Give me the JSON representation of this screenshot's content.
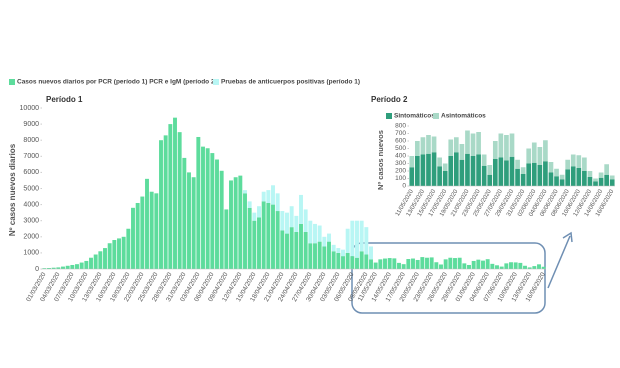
{
  "chart_data": [
    {
      "type": "stacked_bar",
      "title": "Período 1",
      "y_label": "Nº casos nuevos diarios",
      "categories": [
        "01/03/2020",
        null,
        null,
        "04/03/2020",
        null,
        null,
        "07/03/2020",
        null,
        null,
        "10/03/2020",
        null,
        null,
        "13/03/2020",
        null,
        null,
        "16/03/2020",
        null,
        null,
        "19/03/2020",
        null,
        null,
        "22/03/2020",
        null,
        null,
        "25/03/2020",
        null,
        null,
        "28/03/2020",
        null,
        null,
        "31/03/2020",
        null,
        null,
        "03/04/2020",
        null,
        null,
        "06/04/2020",
        null,
        null,
        "09/04/2020",
        null,
        null,
        "12/04/2020",
        null,
        null,
        "15/04/2020",
        null,
        null,
        "18/04/2020",
        null,
        null,
        "21/04/2020",
        null,
        null,
        "24/04/2020",
        null,
        null,
        "27/04/2020",
        null,
        null,
        "30/04/2020",
        null,
        null,
        "03/05/2020",
        null,
        null,
        "06/05/2020",
        null,
        null,
        "09/05/2020",
        null,
        "11/05/2020",
        null,
        null,
        "14/05/2020",
        null,
        null,
        "17/05/2020",
        null,
        null,
        "20/05/2020",
        null,
        null,
        "23/05/2020",
        null,
        null,
        "26/05/2020",
        null,
        null,
        "29/05/2020",
        null,
        null,
        "01/06/2020",
        null,
        null,
        "04/06/2020",
        null,
        null,
        "07/06/2020",
        null,
        null,
        "10/06/2020",
        null,
        null,
        "13/06/2020",
        null,
        null,
        "16/06/2020"
      ],
      "series": [
        {
          "name": "Casos nuevos diarios por PCR (período 1) PCR e IgM (período 2)",
          "color": "#5ddc9c",
          "values": [
            50,
            60,
            80,
            100,
            150,
            200,
            250,
            300,
            400,
            500,
            700,
            900,
            1100,
            1300,
            1600,
            1800,
            1900,
            2000,
            2500,
            3800,
            4100,
            4500,
            5600,
            4800,
            4700,
            8000,
            8300,
            9000,
            9400,
            8500,
            6900,
            6000,
            5700,
            8200,
            7600,
            7500,
            7200,
            6800,
            6100,
            3700,
            5500,
            5700,
            5800,
            4700,
            3800,
            3000,
            3200,
            4200,
            4100,
            4000,
            3600,
            2400,
            2200,
            2600,
            2300,
            2800,
            2300,
            1600,
            1600,
            1700,
            1400,
            1700,
            1100,
            1000,
            800,
            1000,
            800,
            700,
            1100,
            900,
            600,
            400,
            600,
            650,
            680,
            660,
            380,
            300,
            620,
            650,
            560,
            740,
            700,
            720,
            420,
            280,
            600,
            700,
            680,
            700,
            350,
            250,
            500,
            580,
            520,
            610,
            320,
            230,
            150,
            350,
            420,
            410,
            380,
            200,
            100,
            180,
            290,
            140
          ]
        },
        {
          "name": "Pruebas de anticuerpos positivas (período 1)",
          "color": "#b8f6f4",
          "values": [
            null,
            null,
            null,
            null,
            null,
            null,
            null,
            null,
            null,
            null,
            null,
            null,
            null,
            null,
            null,
            null,
            null,
            null,
            null,
            null,
            null,
            null,
            null,
            null,
            null,
            null,
            null,
            null,
            null,
            null,
            null,
            null,
            null,
            null,
            null,
            null,
            null,
            null,
            null,
            null,
            null,
            null,
            null,
            200,
            400,
            500,
            700,
            600,
            800,
            1200,
            1100,
            1200,
            1300,
            1300,
            1000,
            1800,
            1400,
            1400,
            1200,
            1000,
            600,
            500,
            400,
            300,
            400,
            1500,
            2200,
            2300,
            1900,
            1700,
            800,
            null,
            null,
            null,
            null,
            null,
            null,
            null,
            null,
            null,
            null,
            null,
            null,
            null,
            null,
            null,
            null,
            null,
            null,
            null,
            null,
            null,
            null,
            null,
            null,
            null,
            null,
            null,
            null,
            null,
            null,
            null,
            null,
            null,
            null,
            null,
            null,
            null
          ]
        }
      ],
      "ylim": [
        0,
        10000
      ],
      "yticks": [
        0,
        1000,
        2000,
        3000,
        4000,
        5000,
        6000,
        7000,
        8000,
        9000,
        10000
      ]
    },
    {
      "type": "stacked_bar",
      "title": "Período 2",
      "y_label": "Nº casos nuevos",
      "categories": [
        "11/05/2020",
        null,
        "13/05/2020",
        null,
        "15/05/2020",
        null,
        "17/05/2020",
        null,
        "19/05/2020",
        null,
        "21/05/2020",
        null,
        "23/05/2020",
        null,
        "25/05/2020",
        null,
        "27/05/2020",
        null,
        "29/05/2020",
        null,
        "31/05/2020",
        null,
        "02/06/2020",
        null,
        "04/06/2020",
        null,
        "06/06/2020",
        null,
        "08/06/2020",
        null,
        "10/06/2020",
        null,
        "12/06/2020",
        null,
        "14/06/2020",
        null,
        "16/06/2020"
      ],
      "series": [
        {
          "name": "Sintomáticos",
          "color": "#2f9e7c",
          "values": [
            250,
            400,
            420,
            430,
            450,
            260,
            200,
            400,
            450,
            350,
            430,
            400,
            420,
            270,
            150,
            360,
            380,
            340,
            390,
            230,
            160,
            300,
            310,
            280,
            330,
            180,
            130,
            90,
            220,
            260,
            240,
            200,
            120,
            60,
            110,
            150,
            90
          ]
        },
        {
          "name": "Asintomáticos",
          "color": "#a9d9c7",
          "values": [
            150,
            200,
            230,
            250,
            210,
            120,
            100,
            220,
            200,
            210,
            310,
            300,
            300,
            150,
            130,
            240,
            320,
            340,
            310,
            120,
            90,
            200,
            270,
            240,
            280,
            140,
            100,
            60,
            130,
            160,
            170,
            180,
            80,
            40,
            70,
            140,
            50
          ]
        }
      ],
      "ylim": [
        0,
        800
      ],
      "yticks": [
        0,
        100,
        200,
        300,
        400,
        500,
        600,
        700,
        800
      ]
    }
  ]
}
